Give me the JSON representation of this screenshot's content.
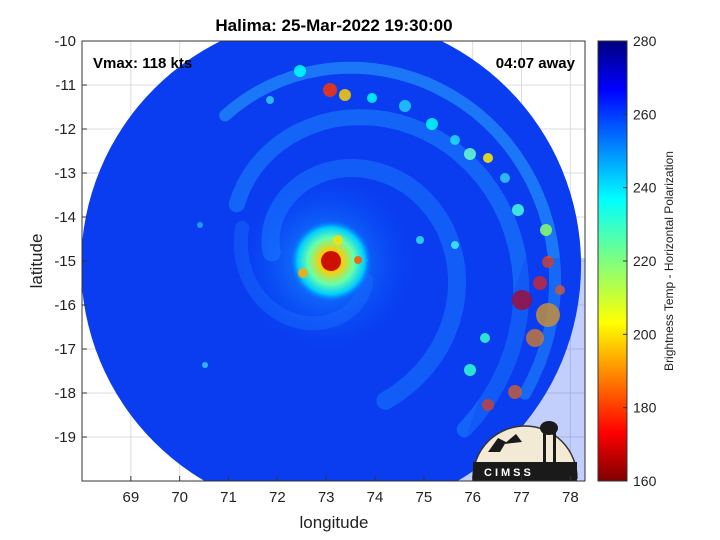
{
  "chart_data": {
    "type": "heatmap",
    "title": "Halima: 25-Mar-2022 19:30:00",
    "xlabel": "longitude",
    "ylabel": "latitude",
    "xlim": [
      68,
      78.3
    ],
    "ylim": [
      -20,
      -10
    ],
    "y_reversed": true,
    "xticks": [
      69,
      70,
      71,
      72,
      73,
      74,
      75,
      76,
      77,
      78
    ],
    "yticks": [
      -10,
      -11,
      -12,
      -13,
      -14,
      -15,
      -16,
      -17,
      -18,
      -19
    ],
    "grid": true,
    "annotations": {
      "top_left": "Vmax: 118 kts",
      "top_right": "04:07 away"
    },
    "swath_center": {
      "lon": 73.1,
      "lat": -15.1
    },
    "eye_center": {
      "lon": 73.1,
      "lat": -15.0
    },
    "colorbar": {
      "label": "Brightness Temp - Horizontal Polarization",
      "range": [
        160,
        280
      ],
      "ticks": [
        160,
        180,
        200,
        220,
        240,
        260,
        280
      ],
      "colormap": "jet",
      "colors": [
        "#7f0000",
        "#ff0000",
        "#ffff00",
        "#00ffff",
        "#0000ff",
        "#00007f"
      ]
    },
    "logo": "CIMSS"
  }
}
